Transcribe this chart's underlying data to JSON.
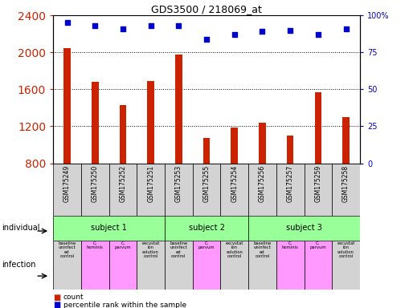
{
  "title": "GDS3500 / 218069_at",
  "samples": [
    "GSM175249",
    "GSM175250",
    "GSM175252",
    "GSM175251",
    "GSM175253",
    "GSM175255",
    "GSM175254",
    "GSM175256",
    "GSM175257",
    "GSM175259",
    "GSM175258"
  ],
  "counts": [
    2050,
    1680,
    1430,
    1690,
    1980,
    1070,
    1190,
    1240,
    1100,
    1570,
    1300
  ],
  "percentile_values": [
    95,
    93,
    91,
    93,
    93,
    84,
    87,
    89,
    90,
    87,
    91
  ],
  "ylim_left": [
    800,
    2400
  ],
  "ylim_right": [
    0,
    100
  ],
  "yticks_left": [
    800,
    1200,
    1600,
    2000,
    2400
  ],
  "yticks_right": [
    0,
    25,
    50,
    75,
    100
  ],
  "bar_color": "#cc2200",
  "dot_color": "#0000cc",
  "subjects": [
    {
      "label": "subject 1",
      "start": 0,
      "end": 4,
      "color": "#99ff99"
    },
    {
      "label": "subject 2",
      "start": 4,
      "end": 7,
      "color": "#99ff99"
    },
    {
      "label": "subject 3",
      "start": 7,
      "end": 11,
      "color": "#99ff99"
    }
  ],
  "infections": [
    {
      "label": "baseline\nuninfect\ned\ncontrol",
      "bg": "#d3d3d3"
    },
    {
      "label": "C.\nhominis",
      "bg": "#ff99ff"
    },
    {
      "label": "C.\nparvum",
      "bg": "#ff99ff"
    },
    {
      "label": "excystat\nion\nsolution\ncontrol",
      "bg": "#d3d3d3"
    },
    {
      "label": "baseline\nuninfect\ned\ncontrol",
      "bg": "#d3d3d3"
    },
    {
      "label": "C.\nparvum",
      "bg": "#ff99ff"
    },
    {
      "label": "excystat\nion\nsolution\ncontrol",
      "bg": "#d3d3d3"
    },
    {
      "label": "baseline\nuninfect\ned\ncontrol",
      "bg": "#d3d3d3"
    },
    {
      "label": "C.\nhominis",
      "bg": "#ff99ff"
    },
    {
      "label": "C.\nparvum",
      "bg": "#ff99ff"
    },
    {
      "label": "excystat\nion\nsolution\ncontrol",
      "bg": "#d3d3d3"
    }
  ],
  "left_label_color": "#cc2200",
  "right_label_color": "#0000cc",
  "legend_count_color": "#cc2200",
  "legend_dot_color": "#0000cc"
}
